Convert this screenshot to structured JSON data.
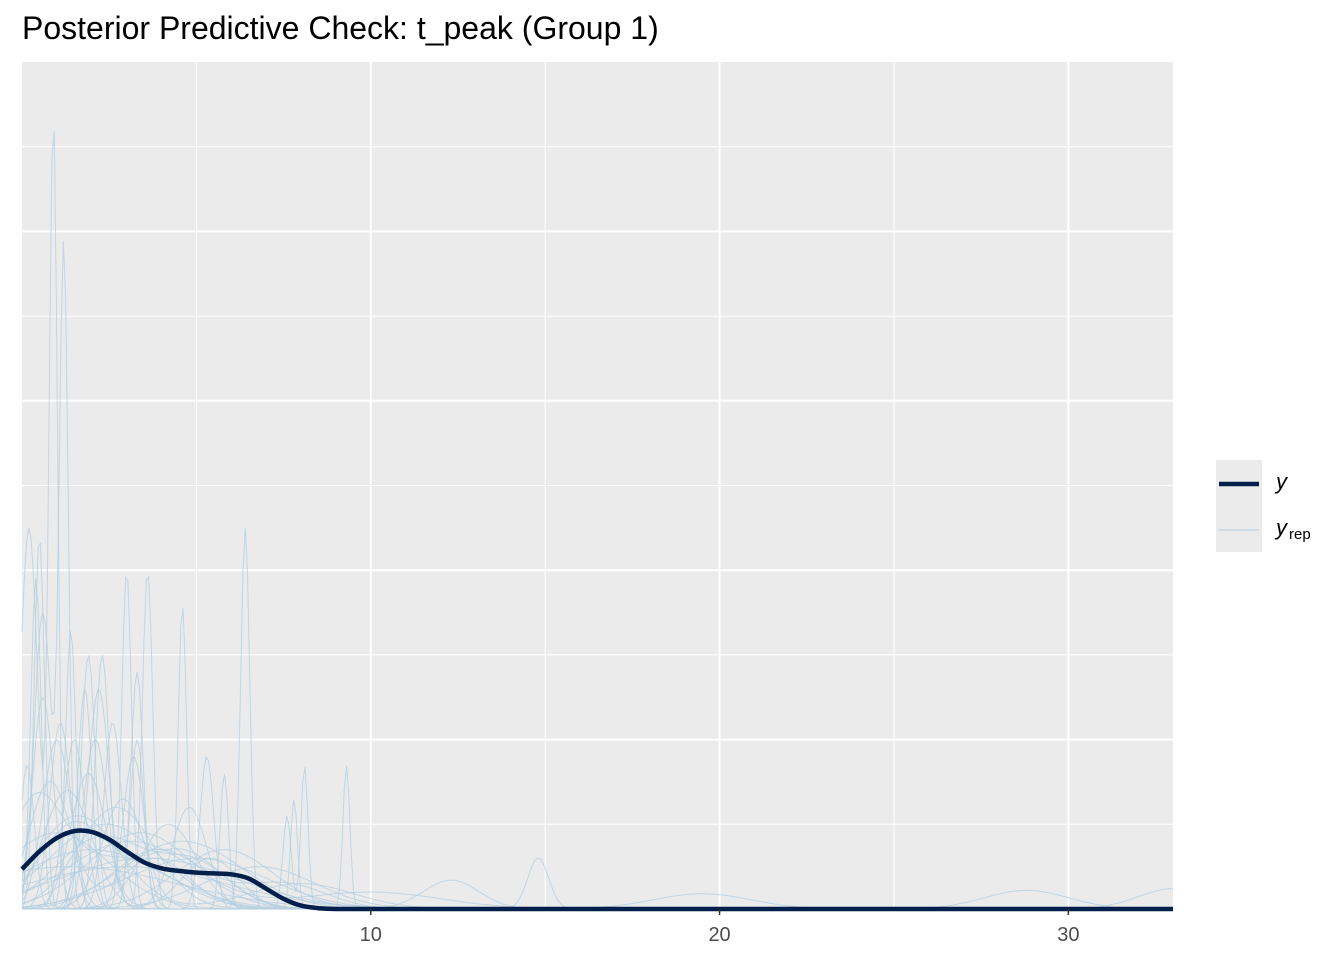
{
  "chart_data": {
    "type": "line",
    "title": "Posterior Predictive Check: t_peak (Group 1)",
    "xlabel": "",
    "ylabel": "",
    "xlim": [
      0,
      33
    ],
    "ylim": [
      0,
      1
    ],
    "x_ticks": [
      10,
      20,
      30
    ],
    "y_ticks_labeled": false,
    "grid": true,
    "legend_position": "right",
    "colors": {
      "y": "#011f4b",
      "yrep": "#b3cde0",
      "panel": "#ebebeb",
      "grid": "#ffffff"
    },
    "series": [
      {
        "name": "y",
        "role": "observed",
        "x": [
          0,
          0.5,
          1,
          1.5,
          2,
          2.5,
          3,
          3.5,
          4,
          4.5,
          5,
          5.5,
          6,
          6.5,
          7,
          7.5,
          8,
          8.5,
          9,
          10,
          15,
          20,
          25,
          30,
          33
        ],
        "y": [
          0.047,
          0.068,
          0.084,
          0.092,
          0.091,
          0.082,
          0.068,
          0.055,
          0.048,
          0.045,
          0.043,
          0.042,
          0.041,
          0.036,
          0.024,
          0.012,
          0.004,
          0.001,
          0.0,
          0.0,
          0.0,
          0.0,
          0.0,
          0.0,
          0.0
        ]
      },
      {
        "name": "y_rep",
        "role": "replicated",
        "curves": [
          {
            "peaks": [
              [
                0.9,
                0.93,
                0.12
              ],
              [
                0.2,
                0.45,
                0.25
              ]
            ]
          },
          {
            "peaks": [
              [
                1.2,
                0.77,
                0.13
              ],
              [
                0.6,
                0.35,
                0.25
              ]
            ]
          },
          {
            "peaks": [
              [
                0.5,
                0.44,
                0.15
              ],
              [
                1.9,
                0.3,
                0.2
              ]
            ]
          },
          {
            "peaks": [
              [
                0.4,
                0.39,
                0.15
              ],
              [
                1.4,
                0.33,
                0.15
              ]
            ]
          },
          {
            "peaks": [
              [
                3,
                0.4,
                0.14
              ],
              [
                1.5,
                0.2,
                0.3
              ]
            ]
          },
          {
            "peaks": [
              [
                3.6,
                0.4,
                0.15
              ],
              [
                2.2,
                0.26,
                0.3
              ]
            ]
          },
          {
            "peaks": [
              [
                4.6,
                0.36,
                0.12
              ],
              [
                1,
                0.2,
                0.4
              ]
            ]
          },
          {
            "peaks": [
              [
                6.4,
                0.45,
                0.13
              ],
              [
                5.3,
                0.18,
                0.2
              ]
            ]
          },
          {
            "peaks": [
              [
                2.3,
                0.3,
                0.2
              ],
              [
                3.3,
                0.2,
                0.2
              ]
            ]
          },
          {
            "peaks": [
              [
                8.1,
                0.17,
                0.1
              ],
              [
                7.6,
                0.11,
                0.12
              ]
            ]
          },
          {
            "peaks": [
              [
                9.3,
                0.17,
                0.1
              ]
            ]
          },
          {
            "peaks": [
              [
                5.8,
                0.16,
                0.12
              ]
            ]
          },
          {
            "peaks": [
              [
                7.8,
                0.13,
                0.1
              ]
            ]
          },
          {
            "peaks": [
              [
                3.3,
                0.28,
                0.18
              ]
            ]
          },
          {
            "peaks": [
              [
                2.6,
                0.22,
                0.25
              ]
            ]
          },
          {
            "peaks": [
              [
                1.8,
                0.26,
                0.2
              ]
            ]
          },
          {
            "peaks": [
              [
                1.1,
                0.22,
                0.3
              ]
            ]
          },
          {
            "peaks": [
              [
                0.15,
                0.17,
                0.2
              ]
            ]
          },
          {
            "peaks": [
              [
                14.8,
                0.06,
                0.3
              ]
            ]
          },
          {
            "peaks": [
              [
                28.8,
                0.022,
                1.2
              ]
            ]
          },
          {
            "peaks": [
              [
                19.5,
                0.018,
                1.4
              ]
            ]
          },
          {
            "peaks": [
              [
                12.3,
                0.034,
                0.8
              ]
            ]
          },
          {
            "peaks": [
              [
                33,
                0.024,
                1
              ]
            ]
          },
          {
            "peaks": [
              [
                2.3,
                0.085,
                1.3
              ],
              [
                5,
                0.05,
                1
              ]
            ]
          },
          {
            "peaks": [
              [
                1.5,
                0.1,
                1
              ],
              [
                4.5,
                0.07,
                1.2
              ]
            ]
          },
          {
            "peaks": [
              [
                3.4,
                0.09,
                1.5
              ]
            ]
          },
          {
            "peaks": [
              [
                4.6,
                0.08,
                1.7
              ]
            ]
          },
          {
            "peaks": [
              [
                2.7,
                0.12,
                1.1
              ]
            ]
          },
          {
            "peaks": [
              [
                1.3,
                0.14,
                0.7
              ]
            ]
          },
          {
            "peaks": [
              [
                5.8,
                0.07,
                1.4
              ]
            ]
          },
          {
            "peaks": [
              [
                0.8,
                0.15,
                0.6
              ],
              [
                3.8,
                0.06,
                1
              ]
            ]
          },
          {
            "peaks": [
              [
                2,
                0.07,
                2
              ]
            ]
          },
          {
            "peaks": [
              [
                3.6,
                0.06,
                2.5
              ]
            ]
          },
          {
            "peaks": [
              [
                6.8,
                0.05,
                1.6
              ]
            ]
          },
          {
            "peaks": [
              [
                1.9,
                0.16,
                0.5
              ],
              [
                5.4,
                0.06,
                0.8
              ]
            ]
          },
          {
            "peaks": [
              [
                2.9,
                0.13,
                0.6
              ]
            ]
          },
          {
            "peaks": [
              [
                4.2,
                0.1,
                0.8
              ]
            ]
          },
          {
            "peaks": [
              [
                0.4,
                0.12,
                0.8
              ],
              [
                2.8,
                0.06,
                1.5
              ]
            ]
          },
          {
            "peaks": [
              [
                1.6,
                0.11,
                1.2
              ],
              [
                8,
                0.03,
                1.5
              ]
            ]
          },
          {
            "peaks": [
              [
                3.1,
                0.08,
                1.8
              ],
              [
                10,
                0.02,
                2
              ]
            ]
          },
          {
            "peaks": [
              [
                2.4,
                0.1,
                1.6
              ]
            ]
          },
          {
            "peaks": [
              [
                5,
                0.06,
                2
              ]
            ]
          },
          {
            "peaks": [
              [
                1,
                0.09,
                1.5
              ]
            ]
          },
          {
            "peaks": [
              [
                3.9,
                0.07,
                1.3
              ],
              [
                7.5,
                0.03,
                1.2
              ]
            ]
          },
          {
            "peaks": [
              [
                2.1,
                0.2,
                0.35
              ]
            ]
          },
          {
            "peaks": [
              [
                3.2,
                0.18,
                0.3
              ]
            ]
          },
          {
            "peaks": [
              [
                0.6,
                0.25,
                0.3
              ]
            ]
          },
          {
            "peaks": [
              [
                4.8,
                0.12,
                0.5
              ]
            ]
          },
          {
            "peaks": [
              [
                1.4,
                0.05,
                3
              ]
            ]
          },
          {
            "peaks": [
              [
                3,
                0.05,
                2.8
              ]
            ]
          }
        ]
      }
    ]
  },
  "legend": {
    "items": [
      {
        "key": "y",
        "label": "y",
        "subscript": ""
      },
      {
        "key": "yrep",
        "label": "y",
        "subscript": "rep"
      }
    ]
  }
}
